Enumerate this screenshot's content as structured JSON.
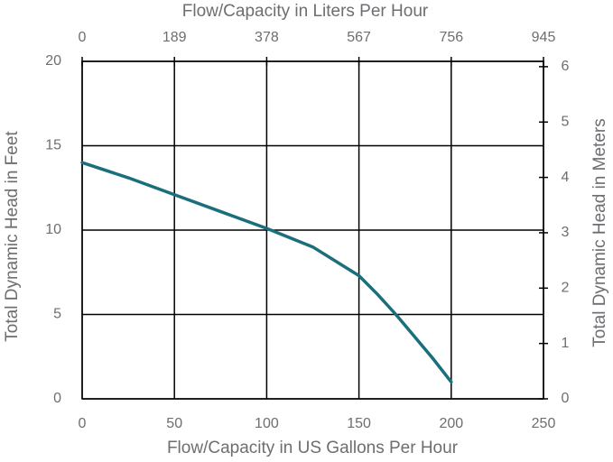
{
  "chart_data": {
    "type": "line",
    "x_label": "Flow/Capacity in US Gallons Per Hour",
    "x2_label": "Flow/Capacity in Liters Per Hour",
    "y_label": "Total Dynamic Head in Feet",
    "y2_label": "Total Dynamic Head in Meters",
    "x": [
      0,
      25,
      50,
      75,
      100,
      125,
      150,
      160,
      170,
      180,
      190,
      200
    ],
    "values": [
      14,
      13.1,
      12.1,
      11.1,
      10.1,
      9,
      7.3,
      6.2,
      5,
      3.7,
      2.4,
      1
    ],
    "color": "#1b6f7b",
    "xlim": [
      0,
      250
    ],
    "xticks": [
      0,
      50,
      100,
      150,
      200,
      250
    ],
    "x2lim": [
      0,
      945
    ],
    "x2ticks": [
      0,
      189,
      378,
      567,
      756,
      945
    ],
    "ylim": [
      0,
      20
    ],
    "yticks": [
      0,
      5,
      10,
      15,
      20
    ],
    "y2lim": [
      0,
      6.096
    ],
    "y2ticks": [
      0,
      1,
      2,
      3,
      4,
      5,
      6
    ],
    "grid": true
  }
}
